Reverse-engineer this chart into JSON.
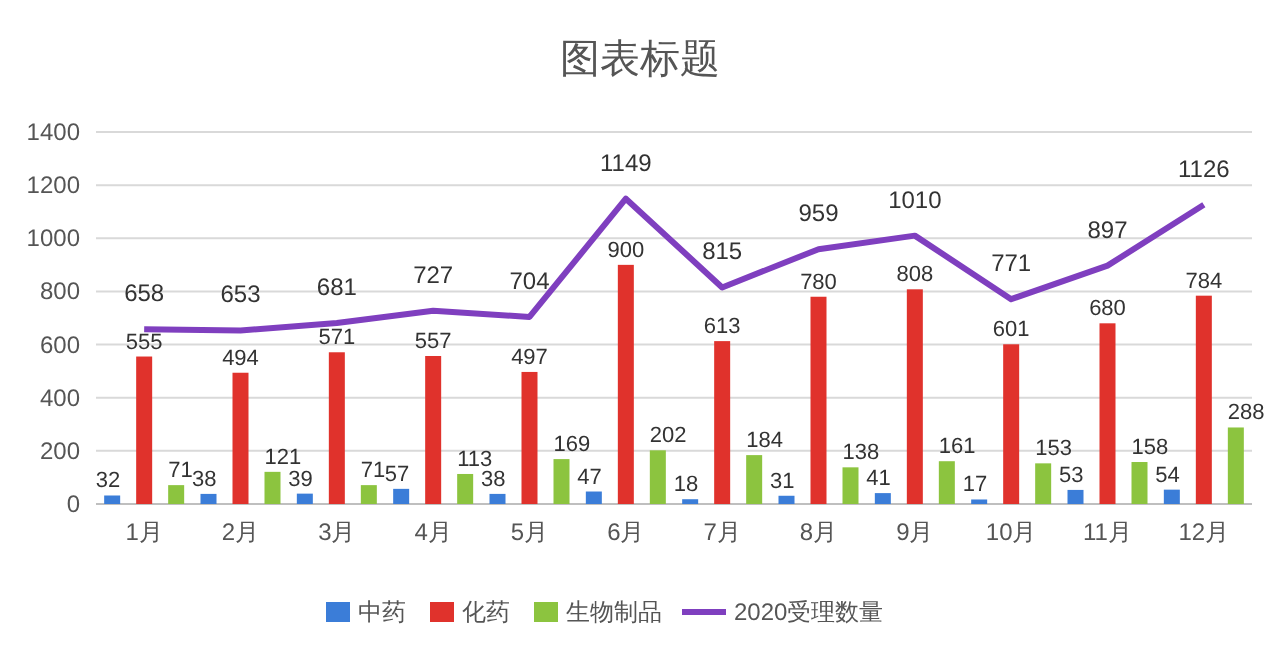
{
  "chart_data": {
    "type": "bar",
    "title": "图表标题",
    "categories": [
      "1月",
      "2月",
      "3月",
      "4月",
      "5月",
      "6月",
      "7月",
      "8月",
      "9月",
      "10月",
      "11月",
      "12月"
    ],
    "series": [
      {
        "name": "中药",
        "color": "#3b7dd8",
        "values": [
          32,
          38,
          39,
          57,
          38,
          47,
          18,
          31,
          41,
          17,
          53,
          54
        ]
      },
      {
        "name": "化药",
        "color": "#e0322c",
        "values": [
          555,
          494,
          571,
          557,
          497,
          900,
          613,
          780,
          808,
          601,
          680,
          784
        ]
      },
      {
        "name": "生物制品",
        "color": "#8cc43f",
        "values": [
          71,
          121,
          71,
          113,
          169,
          202,
          184,
          138,
          161,
          153,
          158,
          288
        ]
      },
      {
        "name": "2020受理数量",
        "type": "line",
        "color": "#7f3fbf",
        "values": [
          658,
          653,
          681,
          727,
          704,
          1149,
          815,
          959,
          1010,
          771,
          897,
          1126
        ]
      }
    ],
    "ylim": [
      0,
      1400
    ],
    "yticks": [
      0,
      200,
      400,
      600,
      800,
      1000,
      1200,
      1400
    ],
    "grid": "y",
    "legend": "bottom",
    "data_labels": true
  }
}
